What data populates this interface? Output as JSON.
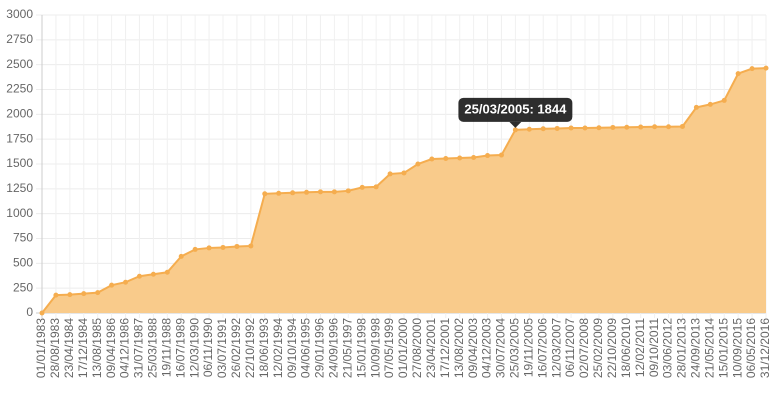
{
  "chart_data": {
    "type": "area",
    "categories": [
      "01/01/1983",
      "28/08/1983",
      "23/04/1984",
      "17/12/1984",
      "13/08/1985",
      "09/04/1986",
      "04/12/1986",
      "31/07/1987",
      "25/03/1988",
      "19/11/1988",
      "16/07/1989",
      "12/03/1990",
      "06/11/1990",
      "03/07/1991",
      "26/02/1992",
      "22/10/1992",
      "18/06/1993",
      "12/02/1994",
      "09/10/1994",
      "04/06/1995",
      "29/01/1996",
      "24/09/1996",
      "21/05/1997",
      "15/01/1998",
      "10/09/1998",
      "07/05/1999",
      "01/01/2000",
      "27/08/2000",
      "23/04/2001",
      "17/12/2001",
      "13/08/2002",
      "09/04/2003",
      "04/12/2003",
      "30/07/2004",
      "25/03/2005",
      "19/11/2005",
      "16/07/2006",
      "12/03/2007",
      "06/11/2007",
      "02/07/2008",
      "25/02/2009",
      "22/10/2009",
      "18/06/2010",
      "12/02/2011",
      "09/10/2011",
      "03/06/2012",
      "28/01/2013",
      "24/09/2013",
      "21/05/2014",
      "15/01/2015",
      "10/09/2015",
      "06/05/2016",
      "31/12/2016"
    ],
    "values": [
      0,
      180,
      185,
      195,
      205,
      280,
      310,
      370,
      390,
      410,
      570,
      640,
      655,
      660,
      670,
      675,
      1200,
      1205,
      1210,
      1215,
      1220,
      1220,
      1230,
      1265,
      1270,
      1400,
      1410,
      1500,
      1550,
      1555,
      1560,
      1565,
      1585,
      1590,
      1844,
      1850,
      1855,
      1858,
      1862,
      1862,
      1865,
      1868,
      1870,
      1872,
      1875,
      1875,
      1878,
      2070,
      2100,
      2140,
      2410,
      2460,
      2465
    ],
    "color": "#f5ad4f",
    "fill": "#f9cb8b",
    "ylim": [
      0,
      3000
    ],
    "yticks": [
      0,
      250,
      500,
      750,
      1000,
      1250,
      1500,
      1750,
      2000,
      2250,
      2500,
      2750,
      3000
    ],
    "grid": true,
    "tooltip": "25/03/2005: 1844"
  }
}
